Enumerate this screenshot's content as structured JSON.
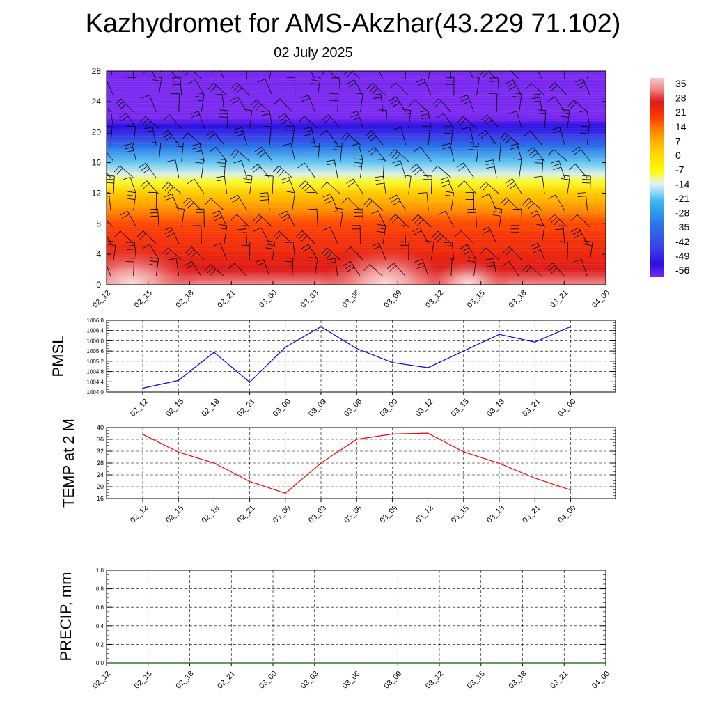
{
  "title": "Kazhydromet for AMS-Akzhar(43.229 71.102)",
  "subtitle": "02 July 2025",
  "chart_data": [
    {
      "type": "heatmap",
      "ylim": [
        0,
        28
      ],
      "y_ticks": [
        "0",
        "4",
        "8",
        "12",
        "16",
        "20",
        "24",
        "28"
      ],
      "x_ticks": [
        "02_12",
        "02_15",
        "02_18",
        "02_21",
        "03_00",
        "03_03",
        "03_06",
        "03_09",
        "03_12",
        "03_15",
        "03_18",
        "03_21",
        "04_00"
      ],
      "colorbar": {
        "labels": [
          "35",
          "28",
          "21",
          "14",
          "7",
          "0",
          "-7",
          "-14",
          "-21",
          "-28",
          "-35",
          "-42",
          "-49",
          "-56"
        ],
        "colors": [
          {
            "v": 35,
            "c": "#f7c8c8"
          },
          {
            "v": 30,
            "c": "#f08a8a"
          },
          {
            "v": 24,
            "c": "#dd1a1a"
          },
          {
            "v": 17,
            "c": "#ff3a00"
          },
          {
            "v": 10,
            "c": "#ff8c00"
          },
          {
            "v": 2,
            "c": "#ffcc00"
          },
          {
            "v": -8,
            "c": "#fffb00"
          },
          {
            "v": -13,
            "c": "#e8f4d8"
          },
          {
            "v": -15,
            "c": "#d0ecf8"
          },
          {
            "v": -22,
            "c": "#38b8f0"
          },
          {
            "v": -32,
            "c": "#2a78e8"
          },
          {
            "v": -44,
            "c": "#3a3ce8"
          },
          {
            "v": -51,
            "c": "#2a10e0"
          },
          {
            "v": -57,
            "c": "#7a28f0"
          }
        ]
      },
      "temperature_profile": [
        {
          "y": 0,
          "t": 30
        },
        {
          "y": 2,
          "t": 24
        },
        {
          "y": 4,
          "t": 21
        },
        {
          "y": 6,
          "t": 19
        },
        {
          "y": 8,
          "t": 16
        },
        {
          "y": 10,
          "t": 9
        },
        {
          "y": 12,
          "t": 2
        },
        {
          "y": 13.5,
          "t": -9
        },
        {
          "y": 14.5,
          "t": -14
        },
        {
          "y": 16,
          "t": -20
        },
        {
          "y": 18,
          "t": -32
        },
        {
          "y": 19.5,
          "t": -44
        },
        {
          "y": 20.8,
          "t": -51
        },
        {
          "y": 21.8,
          "t": -57
        },
        {
          "y": 28,
          "t": -57
        }
      ],
      "surface_warm_centers": [
        {
          "x": 0.6,
          "t": 35
        },
        {
          "x": 6.7,
          "t": 35
        },
        {
          "x": 8.7,
          "t": 32
        }
      ]
    },
    {
      "type": "line",
      "ylabel": "PMSL",
      "ylim": [
        1004.0,
        1006.8
      ],
      "y_ticks": [
        "1004.0",
        "1004.4",
        "1004.8",
        "1005.2",
        "1005.6",
        "1006.0",
        "1006.4",
        "1006.8"
      ],
      "x": [
        "02_12",
        "02_15",
        "02_18",
        "02_21",
        "03_00",
        "03_03",
        "03_06",
        "03_09",
        "03_12",
        "03_15",
        "03_18",
        "03_21",
        "04_00"
      ],
      "values": [
        1004.15,
        1004.45,
        1005.55,
        1004.38,
        1005.75,
        1006.55,
        1005.7,
        1005.15,
        1004.95,
        1005.6,
        1006.25,
        1005.95,
        1006.55
      ],
      "color": "#0000ff"
    },
    {
      "type": "line",
      "ylabel": "TEMP at 2 M",
      "ylim": [
        16,
        40
      ],
      "y_ticks": [
        "16",
        "20",
        "24",
        "28",
        "32",
        "36",
        "40"
      ],
      "x": [
        "02_12",
        "02_15",
        "02_18",
        "02_21",
        "03_00",
        "03_03",
        "03_06",
        "03_09",
        "03_12",
        "03_15",
        "03_18",
        "03_21",
        "04_00"
      ],
      "values": [
        37.7,
        31.7,
        28.0,
        21.8,
        17.8,
        28.0,
        36.0,
        37.8,
        38.1,
        31.8,
        27.9,
        22.9,
        18.9
      ],
      "color": "#ff0000"
    },
    {
      "type": "line",
      "ylabel": "PRECIP, mm",
      "ylim": [
        0.0,
        1.0
      ],
      "y_ticks": [
        "0.0",
        "0.2",
        "0.4",
        "0.6",
        "0.8",
        "1.0"
      ],
      "x_ticks": [
        "02_12",
        "02_15",
        "02_18",
        "02_21",
        "03_00",
        "03_03",
        "03_06",
        "03_09",
        "03_12",
        "03_15",
        "03_18",
        "03_21",
        "04_00"
      ],
      "values": [
        0,
        0,
        0,
        0,
        0,
        0,
        0,
        0,
        0,
        0,
        0,
        0,
        0
      ],
      "color": "#006400"
    }
  ]
}
